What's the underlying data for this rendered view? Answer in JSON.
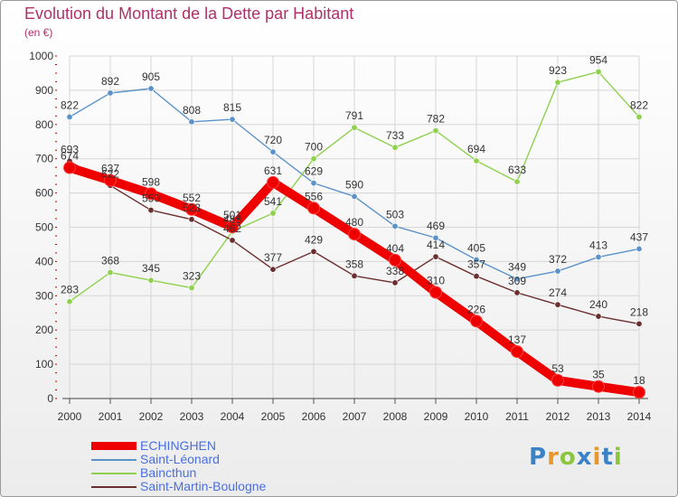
{
  "chart_data": {
    "type": "line",
    "title": "Evolution du Montant de la Dette par Habitant",
    "subtitle": "(en €)",
    "x": [
      "2000",
      "2001",
      "2002",
      "2003",
      "2004",
      "2005",
      "2006",
      "2007",
      "2008",
      "2009",
      "2010",
      "2011",
      "2012",
      "2013",
      "2014"
    ],
    "ylim": [
      0,
      1000
    ],
    "yticks": [
      0,
      100,
      200,
      300,
      400,
      500,
      600,
      700,
      800,
      900,
      1000
    ],
    "grid": true,
    "legend_position": "bottom-left",
    "series": [
      {
        "name": "Saint-Léonard",
        "color": "#5b92c8",
        "values": [
          822,
          892,
          905,
          808,
          815,
          720,
          629,
          590,
          503,
          469,
          405,
          349,
          372,
          413,
          437
        ]
      },
      {
        "name": "Baincthun",
        "color": "#8fd14f",
        "values": [
          283,
          368,
          345,
          323,
          488,
          541,
          700,
          791,
          733,
          782,
          694,
          633,
          923,
          954,
          822
        ]
      },
      {
        "name": "Saint-Martin-Boulogne",
        "color": "#6b2e2e",
        "values": [
          693,
          622,
          550,
          523,
          462,
          377,
          429,
          358,
          338,
          414,
          357,
          309,
          274,
          240,
          218
        ]
      },
      {
        "name": "ECHINGHEN",
        "color": "#ee0000",
        "values": [
          674,
          637,
          598,
          552,
          501,
          631,
          556,
          480,
          404,
          310,
          226,
          137,
          53,
          35,
          18
        ]
      }
    ]
  },
  "brand": {
    "letters": [
      "P",
      "r",
      "o",
      "x",
      "i",
      "t",
      "i"
    ],
    "colors": [
      "#3b83c6",
      "#e8972b",
      "#8cc63f",
      "#3b83c6",
      "#e8972b",
      "#3b83c6",
      "#8cc63f"
    ]
  }
}
